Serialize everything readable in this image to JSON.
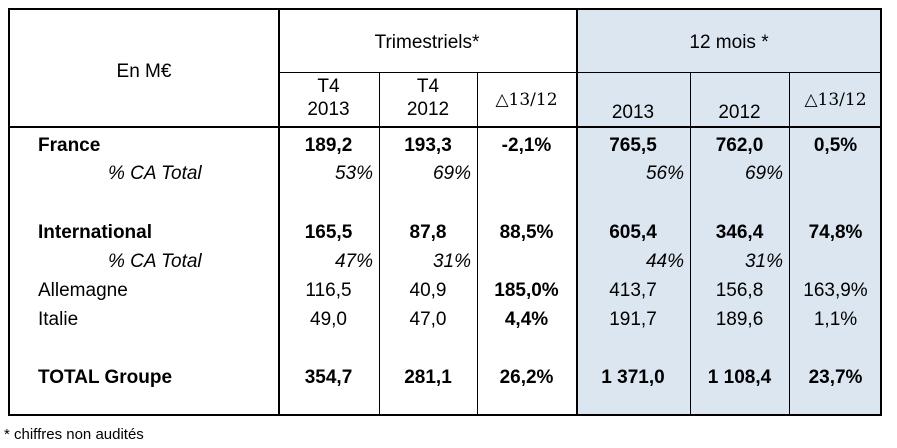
{
  "header": {
    "unit": "En M€",
    "quarterly": "Trimestriels*",
    "annual": "12 mois *",
    "q_col1": [
      "T4",
      "2013"
    ],
    "q_col2": [
      "T4",
      "2012"
    ],
    "delta": "△13/12",
    "y_col1": "2013",
    "y_col2": "2012"
  },
  "rows": [
    {
      "label": "France",
      "values": [
        "189,2",
        "193,3",
        "-2,1%",
        "765,5",
        "762,0",
        "0,5%"
      ]
    },
    {
      "label": "% CA Total",
      "values": [
        "53%",
        "69%",
        "",
        "56%",
        "69%",
        ""
      ]
    },
    {
      "label": "International",
      "values": [
        "165,5",
        "87,8",
        "88,5%",
        "605,4",
        "346,4",
        "74,8%"
      ]
    },
    {
      "label": "% CA Total",
      "values": [
        "47%",
        "31%",
        "",
        "44%",
        "31%",
        ""
      ]
    },
    {
      "label": "Allemagne",
      "values": [
        "116,5",
        "40,9",
        "185,0%",
        "413,7",
        "156,8",
        "163,9%"
      ]
    },
    {
      "label": "Italie",
      "values": [
        "49,0",
        "47,0",
        "4,4%",
        "191,7",
        "189,6",
        "1,1%"
      ]
    },
    {
      "label": "TOTAL Groupe",
      "values": [
        "354,7",
        "281,1",
        "26,2%",
        "1 371,0",
        "1 108,4",
        "23,7%"
      ]
    }
  ],
  "footnote": "* chiffres non audités",
  "colors": {
    "annual_shade": "#dce6f1"
  }
}
